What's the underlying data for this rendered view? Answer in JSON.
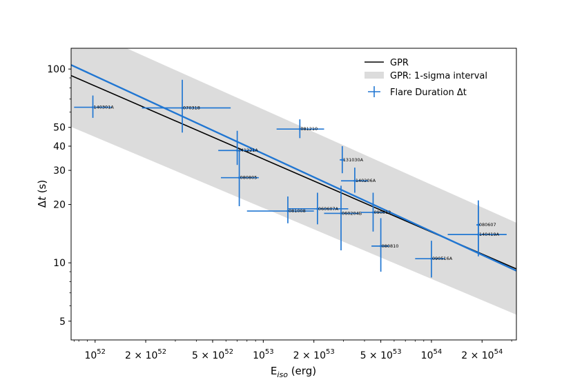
{
  "chart_data": {
    "type": "scatter",
    "xscale": "log",
    "yscale": "log",
    "xlim": [
      7.2e+51,
      3.2e+54
    ],
    "ylim": [
      4.0,
      128
    ],
    "xlabel": {
      "base": "E",
      "sub": "iso",
      "unit": " (erg)"
    },
    "ylabel": {
      "greek": "Δ",
      "var": "t",
      "unit": " (s)"
    },
    "x_ticks": [
      {
        "value": 1e+52,
        "mant": "",
        "exp": "52"
      },
      {
        "value": 2e+52,
        "mant": "2 × ",
        "exp": "52"
      },
      {
        "value": 5e+52,
        "mant": "5 × ",
        "exp": "52"
      },
      {
        "value": 1e+53,
        "mant": "",
        "exp": "53"
      },
      {
        "value": 2e+53,
        "mant": "2 × ",
        "exp": "53"
      },
      {
        "value": 5e+53,
        "mant": "5 × ",
        "exp": "53"
      },
      {
        "value": 1e+54,
        "mant": "",
        "exp": "54"
      },
      {
        "value": 2e+54,
        "mant": "2 × ",
        "exp": "54"
      }
    ],
    "x_tick_base": "10",
    "y_ticks": [
      {
        "value": 5,
        "label": "5"
      },
      {
        "value": 10,
        "label": "10"
      },
      {
        "value": 20,
        "label": "20"
      },
      {
        "value": 30,
        "label": "30"
      },
      {
        "value": 40,
        "label": "40"
      },
      {
        "value": 50,
        "label": "50"
      },
      {
        "value": 100,
        "label": "100"
      }
    ],
    "legend": {
      "position": "top-right",
      "entries": [
        {
          "label": "GPR",
          "kind": "line"
        },
        {
          "label": "GPR: 1-sigma interval",
          "kind": "band"
        },
        {
          "label": "Flare Duration Δt",
          "kind": "errorbar"
        }
      ]
    },
    "gpr_line": {
      "x": [
        7.2e+51,
        3.2e+54
      ],
      "y": [
        92.5,
        9.3
      ],
      "color": "#000000"
    },
    "gpr_band": {
      "x": [
        7.2e+51,
        3.2e+54
      ],
      "lower": [
        50.3,
        5.4
      ],
      "upper": [
        172,
        16.1
      ],
      "color": "#dcdcdc"
    },
    "fit_line": {
      "x": [
        7.2e+51,
        3.2e+54
      ],
      "y": [
        105,
        9.1
      ],
      "color": "#2076d2"
    },
    "series": [
      {
        "name": "140301A",
        "x": 9.7e+51,
        "y": 63.5,
        "xerr": [
          7.5e+51,
          1.26e+52
        ],
        "yerr": [
          56,
          73
        ]
      },
      {
        "name": "070318",
        "x": 3.3e+52,
        "y": 63,
        "xerr": [
          1.9e+52,
          6.4e+52
        ],
        "yerr": [
          47,
          88
        ]
      },
      {
        "name": "141221A",
        "x": 7e+52,
        "y": 38,
        "xerr": [
          5.4e+52,
          9e+52
        ],
        "yerr": [
          32,
          48
        ]
      },
      {
        "name": "080805",
        "x": 7.2e+52,
        "y": 27.5,
        "xerr": [
          5.6e+52,
          9.4e+52
        ],
        "yerr": [
          19.6,
          38
        ]
      },
      {
        "name": "081210",
        "x": 1.65e+53,
        "y": 49,
        "xerr": [
          1.2e+53,
          2.3e+53
        ],
        "yerr": [
          44,
          55
        ]
      },
      {
        "name": "131030A",
        "x": 2.95e+53,
        "y": 34,
        "xerr": [
          2.85e+53,
          3.05e+53
        ],
        "yerr": [
          29,
          40
        ]
      },
      {
        "name": "140206A",
        "x": 3.5e+53,
        "y": 26.5,
        "xerr": [
          2.9e+53,
          4.2e+53
        ],
        "yerr": [
          23,
          31
        ]
      },
      {
        "name": "081008",
        "x": 1.4e+53,
        "y": 18.5,
        "xerr": [
          8e+52,
          2e+53
        ],
        "yerr": [
          16,
          22
        ]
      },
      {
        "name": "060607A",
        "x": 2.1e+53,
        "y": 19,
        "xerr": [
          1.4e+53,
          3.2e+53
        ],
        "yerr": [
          15.8,
          23
        ]
      },
      {
        "name": "060204B",
        "x": 2.9e+53,
        "y": 18,
        "xerr": [
          2.3e+53,
          3.7e+53
        ],
        "yerr": [
          11.6,
          25
        ]
      },
      {
        "name": "090812",
        "x": 4.5e+53,
        "y": 18.2,
        "xerr": [
          3.8e+53,
          5.3e+53
        ],
        "yerr": [
          14.5,
          23
        ]
      },
      {
        "name": "080810",
        "x": 5e+53,
        "y": 12.2,
        "xerr": [
          4.4e+53,
          5.6e+53
        ],
        "yerr": [
          9.0,
          17
        ]
      },
      {
        "name": "090516A",
        "x": 1e+54,
        "y": 10.5,
        "xerr": [
          8e+53,
          1.2e+54
        ],
        "yerr": [
          8.4,
          13
        ]
      },
      {
        "name": "080607",
        "x": 1.9e+54,
        "y": 15.7,
        "xerr": [
          1.85e+54,
          1.95e+54
        ],
        "yerr": [
          11.5,
          21
        ]
      },
      {
        "name": "140419A",
        "x": 1.9e+54,
        "y": 14,
        "xerr": [
          1.25e+54,
          2.8e+54
        ],
        "yerr": [
          10.8,
          20
        ]
      }
    ]
  }
}
